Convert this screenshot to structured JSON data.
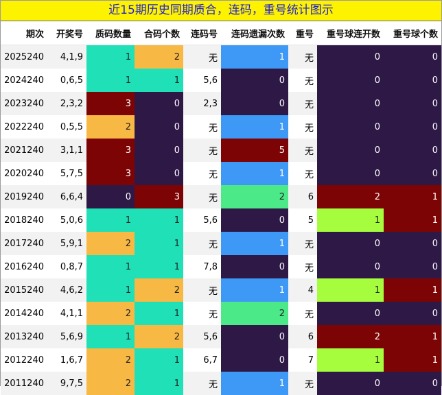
{
  "title": "近15期历史同期质合，连码，重号统计图示",
  "headers": [
    "期次",
    "开奖号",
    "质码数量",
    "合码个数",
    "连码号",
    "连码遗漏次数",
    "重号",
    "重号球连开数",
    "重号球个数"
  ],
  "colors": {
    "zero": "#2e1846",
    "one": "#1fe0b6",
    "two": "#f7b844",
    "three": "#7d0404",
    "lianma_one": "#3d99f5",
    "lianma_two": "#4be987",
    "lianma_five": "#7d0404",
    "chong_one": "#a6fd3e",
    "chong_two": "#7d0404",
    "title_bg": "#fdf200",
    "title_text": "#1f1fd8"
  },
  "chart_data": {
    "type": "table",
    "columns": [
      "期次",
      "开奖号",
      "质码数量",
      "合码个数",
      "连码号",
      "连码遗漏次数",
      "重号",
      "重号球连开数",
      "重号球个数"
    ],
    "rows": [
      [
        "2025240",
        "4,1,9",
        1,
        2,
        "无",
        1,
        "无",
        0,
        0
      ],
      [
        "2024240",
        "0,6,5",
        1,
        1,
        "5,6",
        0,
        "无",
        0,
        0
      ],
      [
        "2023240",
        "2,3,2",
        3,
        0,
        "2,3",
        0,
        "无",
        0,
        0
      ],
      [
        "2022240",
        "0,5,5",
        2,
        0,
        "无",
        1,
        "无",
        0,
        0
      ],
      [
        "2021240",
        "3,1,1",
        3,
        0,
        "无",
        5,
        "无",
        0,
        0
      ],
      [
        "2020240",
        "5,7,5",
        3,
        0,
        "无",
        1,
        "无",
        0,
        0
      ],
      [
        "2019240",
        "6,6,4",
        0,
        3,
        "无",
        2,
        "6",
        2,
        1
      ],
      [
        "2018240",
        "5,0,6",
        1,
        1,
        "5,6",
        0,
        "5",
        1,
        1
      ],
      [
        "2017240",
        "5,9,1",
        2,
        1,
        "无",
        1,
        "无",
        0,
        0
      ],
      [
        "2016240",
        "0,8,7",
        1,
        1,
        "7,8",
        0,
        "无",
        0,
        0
      ],
      [
        "2015240",
        "4,6,2",
        1,
        2,
        "无",
        1,
        "4",
        1,
        1
      ],
      [
        "2014240",
        "4,1,1",
        2,
        1,
        "无",
        2,
        "无",
        0,
        0
      ],
      [
        "2013240",
        "5,6,9",
        1,
        2,
        "5,6",
        0,
        "6",
        2,
        1
      ],
      [
        "2012240",
        "1,6,7",
        2,
        1,
        "6,7",
        0,
        "7",
        1,
        1
      ],
      [
        "2011240",
        "9,7,5",
        2,
        1,
        "无",
        1,
        "无",
        0,
        0
      ]
    ]
  }
}
